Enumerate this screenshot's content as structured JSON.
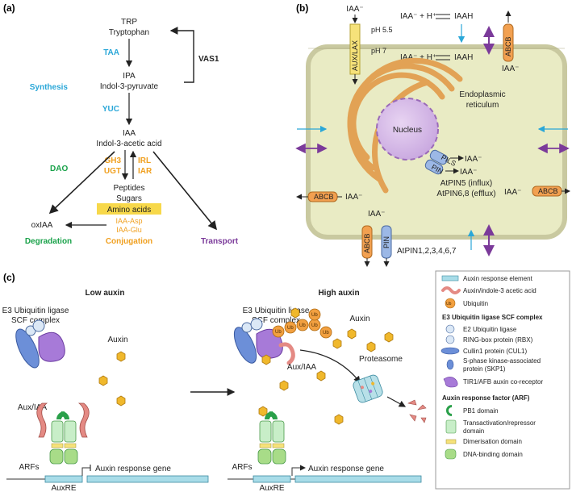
{
  "panel_a": {
    "label": "(a)",
    "trp": "TRP",
    "tryptophan": "Tryptophan",
    "taa": "TAA",
    "vas1": "VAS1",
    "ipa": "IPA",
    "indole_pyruvate": "Indol-3-pyruvate",
    "synthesis": "Synthesis",
    "yuc": "YUC",
    "iaa": "IAA",
    "indole_acetic": "Indol-3-acetic acid",
    "gh3": "GH3",
    "ugt": "UGT",
    "irl": "IRL",
    "iar": "IAR",
    "dao": "DAO",
    "peptides": "Peptides",
    "sugars": "Sugars",
    "amino_acids": "Amino acids",
    "iaa_asp": "IAA-Asp",
    "iaa_glu": "IAA-Glu",
    "oxiaa": "oxIAA",
    "degradation": "Degradation",
    "conjugation": "Conjugation",
    "transport": "Transport"
  },
  "panel_b": {
    "label": "(b)",
    "iaa_minus": "IAA⁻",
    "equation": "IAA⁻ + H⁺",
    "iaah": "IAAH",
    "ph55": "pH 5.5",
    "ph7": "pH 7",
    "aux_lax": "AUX/LAX",
    "abcb": "ABCB",
    "pin": "PIN",
    "pils": "PILS",
    "er1": "Endoplasmic",
    "er2": "reticulum",
    "nucleus": "Nucleus",
    "atpin5": "AtPIN5 (influx)",
    "atpin68": "AtPIN6,8 (efflux)",
    "atpin_list": "AtPIN1,2,3,4,6,7"
  },
  "panel_c": {
    "label": "(c)",
    "low_auxin": "Low auxin",
    "high_auxin": "High auxin",
    "e3_1": "E3 Ubiquitin ligase",
    "e3_2": "SCF complex",
    "auxin": "Auxin",
    "aux_iaa": "Aux/IAA",
    "arfs": "ARFs",
    "auxre": "AuxRE",
    "response_gene": "Auxin response gene",
    "proteasome": "Proteasome",
    "ub": "Ub"
  },
  "legend": {
    "items_top": [
      {
        "label": "Auxin response element"
      },
      {
        "label": "Auxin/indole-3 acetic acid"
      },
      {
        "label": "Ubiquitin"
      }
    ],
    "scf_heading": "E3 Ubiquitin ligase SCF complex",
    "scf_items": [
      {
        "label": "E2 Ubiquitin ligase"
      },
      {
        "label": "RING-box protein (RBX)"
      },
      {
        "label": "Cullin1 protein (CUL1)"
      },
      {
        "label": "S-phase kinase-associated",
        "label2": "protein (SKP1)"
      },
      {
        "label": "TIR1/AFB auxin co-receptor"
      }
    ],
    "arf_heading": "Auxin response factor (ARF)",
    "arf_items": [
      {
        "label": "PB1 domain"
      },
      {
        "label": "Transactivation/repressor",
        "label2": "domain"
      },
      {
        "label": "Dimerisation domain"
      },
      {
        "label": "DNA-binding domain"
      }
    ]
  },
  "colors": {
    "synthesis": "#2aa7d8",
    "conjugation": "#f0a020",
    "degradation": "#1aa24a",
    "transport": "#7b3a9a",
    "cell_fill": "#e9ebc4",
    "cell_wall": "#c9c9a0"
  }
}
